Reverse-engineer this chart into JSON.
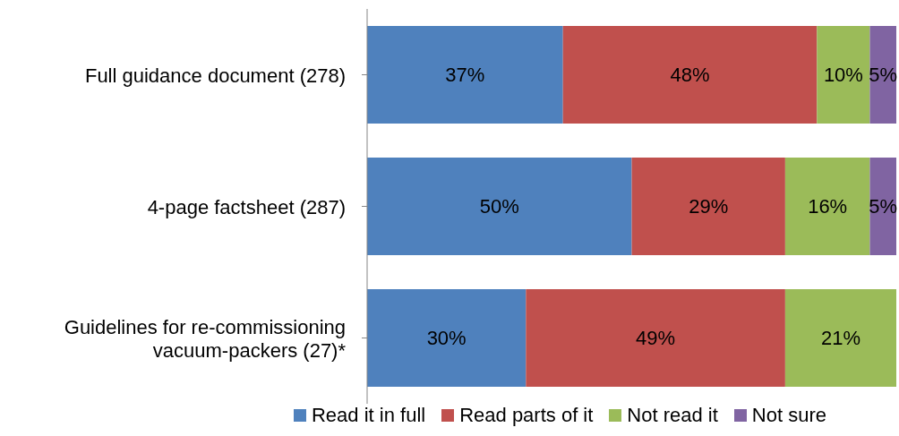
{
  "chart_data": {
    "type": "bar",
    "orientation": "horizontal",
    "stacked": true,
    "tick_labels": "y",
    "legend": "bottom",
    "categories": [
      "Full guidance document (278)",
      "4-page factsheet (287)",
      "Guidelines for re-commissioning vacuum-packers (27)*"
    ],
    "series": [
      {
        "name": "Read it in full",
        "color": "#4f81bd",
        "values": [
          37,
          50,
          30
        ],
        "value_labels": [
          "37%",
          "50%",
          "30%"
        ]
      },
      {
        "name": "Read parts of it",
        "color": "#c0504d",
        "values": [
          48,
          29,
          49
        ],
        "value_labels": [
          "48%",
          "29%",
          "49%"
        ]
      },
      {
        "name": "Not read it",
        "color": "#9bbb59",
        "values": [
          10,
          16,
          21
        ],
        "value_labels": [
          "10%",
          "16%",
          "21%"
        ]
      },
      {
        "name": "Not sure",
        "color": "#8064a2",
        "values": [
          5,
          5,
          null
        ],
        "value_labels": [
          "5%",
          "5%",
          null
        ]
      }
    ]
  }
}
